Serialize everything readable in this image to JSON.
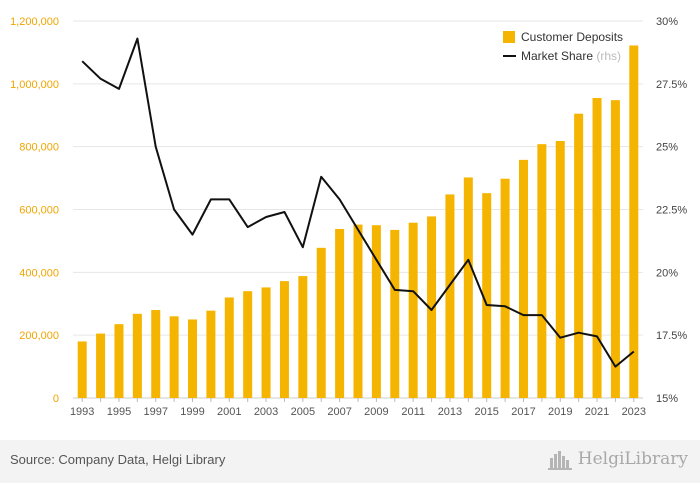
{
  "chart_data": {
    "type": "bar",
    "categories": [
      "1993",
      "1994",
      "1995",
      "1996",
      "1997",
      "1998",
      "1999",
      "2000",
      "2001",
      "2002",
      "2003",
      "2004",
      "2005",
      "2006",
      "2007",
      "2008",
      "2009",
      "2010",
      "2011",
      "2012",
      "2013",
      "2014",
      "2015",
      "2016",
      "2017",
      "2018",
      "2019",
      "2020",
      "2021",
      "2022",
      "2023"
    ],
    "x_tick_labels": [
      "1993",
      "1995",
      "1997",
      "1999",
      "2001",
      "2003",
      "2005",
      "2007",
      "2009",
      "2011",
      "2013",
      "2015",
      "2017",
      "2019",
      "2021",
      "2023"
    ],
    "series": [
      {
        "name": "Customer Deposits",
        "type": "bar",
        "axis": "left",
        "color": "#f5b400",
        "values": [
          180000,
          205000,
          235000,
          268000,
          280000,
          260000,
          250000,
          278000,
          320000,
          340000,
          352000,
          372000,
          388000,
          478000,
          538000,
          552000,
          550000,
          535000,
          558000,
          578000,
          648000,
          702000,
          652000,
          698000,
          758000,
          808000,
          818000,
          905000,
          955000,
          948000,
          1122000
        ]
      },
      {
        "name": "Market Share",
        "note": "(rhs)",
        "type": "line",
        "axis": "right",
        "color": "#111111",
        "values": [
          28.4,
          27.7,
          27.3,
          29.3,
          25.0,
          22.5,
          21.5,
          22.9,
          22.9,
          21.8,
          22.2,
          22.4,
          21.0,
          23.8,
          22.9,
          21.7,
          20.5,
          19.3,
          19.25,
          18.5,
          19.5,
          20.5,
          18.7,
          18.65,
          18.3,
          18.3,
          17.4,
          17.6,
          17.45,
          16.25,
          16.85
        ]
      }
    ],
    "y_left": {
      "min": 0,
      "max": 1200000,
      "ticks": [
        "0",
        "200,000",
        "400,000",
        "600,000",
        "800,000",
        "1,000,000",
        "1,200,000"
      ]
    },
    "y_right": {
      "min": 15,
      "max": 30,
      "ticks": [
        "15%",
        "17.5%",
        "20%",
        "22.5%",
        "25%",
        "27.5%",
        "30%"
      ]
    },
    "legend_position": "top-right",
    "grid": true
  },
  "footer": {
    "source": "Source: Company Data, Helgi Library",
    "brand": "HelgiLibrary"
  },
  "colors": {
    "bar": "#f5b400",
    "line": "#111111",
    "left_axis_text": "#f0a500",
    "footer_bg": "#f3f3f3"
  }
}
